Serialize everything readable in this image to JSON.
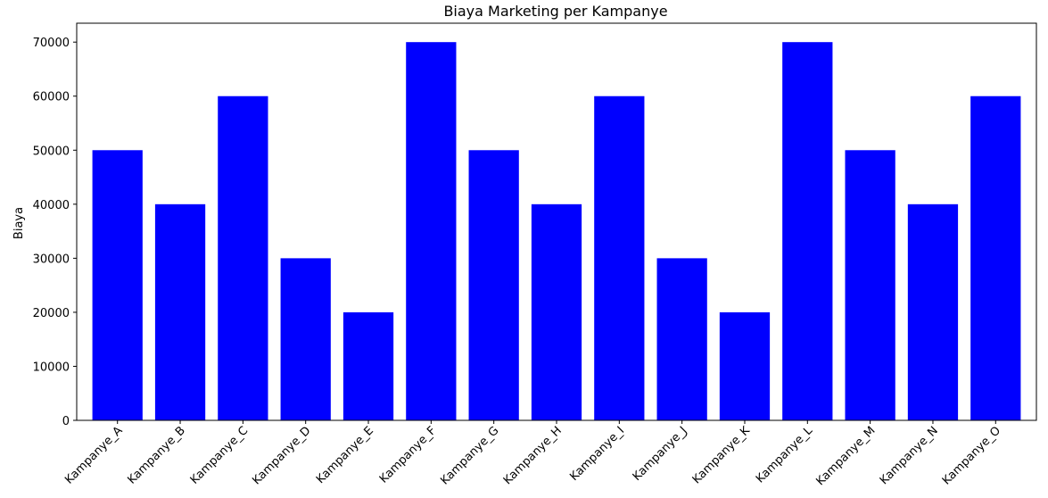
{
  "chart_data": {
    "type": "bar",
    "title": "Biaya Marketing per Kampanye",
    "xlabel": "",
    "ylabel": "Biaya",
    "categories": [
      "Kampanye_A",
      "Kampanye_B",
      "Kampanye_C",
      "Kampanye_D",
      "Kampanye_E",
      "Kampanye_F",
      "Kampanye_G",
      "Kampanye_H",
      "Kampanye_I",
      "Kampanye_J",
      "Kampanye_K",
      "Kampanye_L",
      "Kampanye_M",
      "Kampanye_N",
      "Kampanye_O"
    ],
    "values": [
      50000,
      40000,
      60000,
      30000,
      20000,
      70000,
      50000,
      40000,
      60000,
      30000,
      20000,
      70000,
      50000,
      40000,
      60000
    ],
    "ylim": [
      0,
      73500
    ],
    "yticks": [
      0,
      10000,
      20000,
      30000,
      40000,
      50000,
      60000,
      70000
    ],
    "bar_color": "#0000ff",
    "grid": false,
    "legend": false
  }
}
